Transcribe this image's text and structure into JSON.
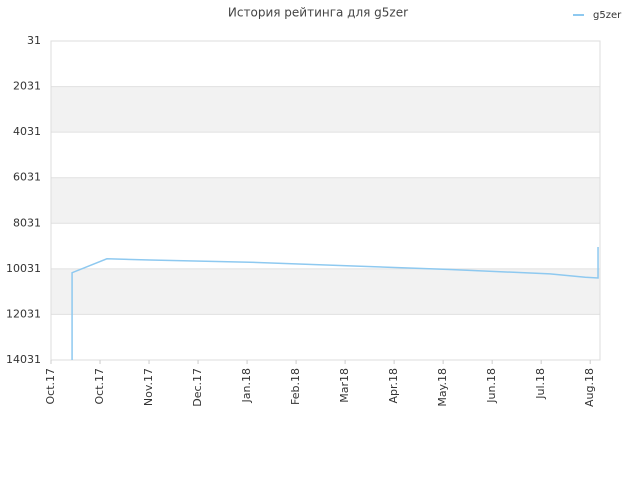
{
  "chart_data": {
    "type": "line",
    "title": "История рейтинга для g5zer",
    "x": [
      0.43,
      0.43,
      1.14,
      2.02,
      4.06,
      6.1,
      8.14,
      10.18,
      10.9,
      11.16,
      11.16
    ],
    "series": [
      {
        "name": "g5zer",
        "color": "#8ec9f0",
        "values": [
          14031,
          10200,
          9590,
          9640,
          9740,
          9900,
          10060,
          10250,
          10400,
          10430,
          9070
        ]
      }
    ],
    "ylim": [
      31,
      14031
    ],
    "yinverted": true,
    "yticks": [
      31,
      2031,
      4031,
      6031,
      8031,
      10031,
      12031,
      14031
    ],
    "xlim": [
      0,
      11.2
    ],
    "xticks": [
      {
        "value": 0,
        "label": "Oct.17"
      },
      {
        "value": 1,
        "label": "Oct.17"
      },
      {
        "value": 2,
        "label": "Nov.17"
      },
      {
        "value": 3,
        "label": "Dec.17"
      },
      {
        "value": 4,
        "label": "Jan.18"
      },
      {
        "value": 5,
        "label": "Feb.18"
      },
      {
        "value": 6,
        "label": "Mar18"
      },
      {
        "value": 7,
        "label": "Apr.18"
      },
      {
        "value": 8,
        "label": "May.18"
      },
      {
        "value": 9,
        "label": "Jun.18"
      },
      {
        "value": 10,
        "label": "Jul.18"
      },
      {
        "value": 11,
        "label": "Aug.18"
      }
    ],
    "grid": true,
    "legend": "top-right"
  }
}
